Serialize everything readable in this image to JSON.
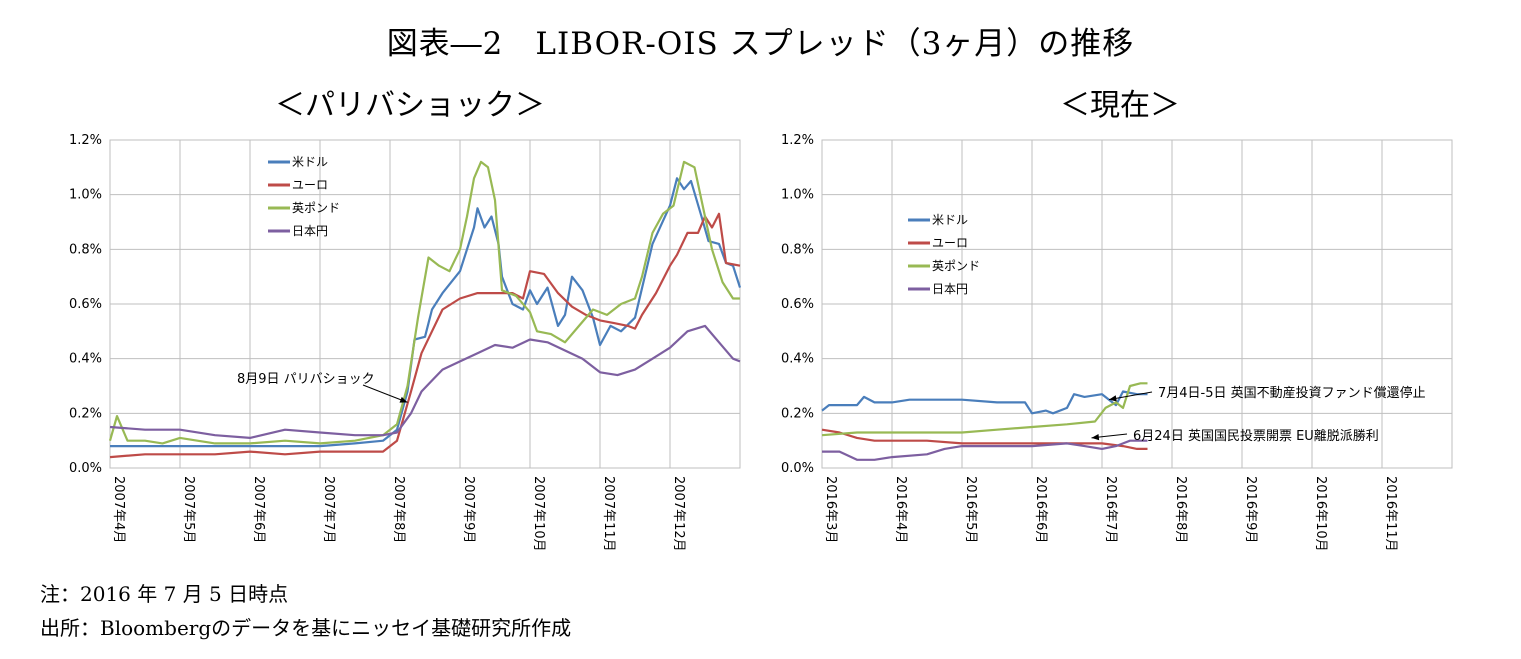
{
  "title": "図表―2　LIBOR-OIS スプレッド（3ヶ月）の推移",
  "note": "注：2016 年 7 月 5 日時点",
  "source": "出所：Bloombergのデータを基にニッセイ基礎研究所作成",
  "colors": {
    "usd": "#4a7ebb",
    "eur": "#be4b48",
    "gbp": "#98b954",
    "jpy": "#7d5fa0"
  },
  "chart_data": [
    {
      "type": "line",
      "title": "＜パリバショック＞",
      "ylim": [
        0,
        1.2
      ],
      "yticks": [
        "0.0%",
        "0.2%",
        "0.4%",
        "0.6%",
        "0.8%",
        "1.0%",
        "1.2%"
      ],
      "grid": true,
      "legend": "top-left",
      "xticks": [
        "2007年4月",
        "2007年5月",
        "2007年6月",
        "2007年7月",
        "2007年8月",
        "2007年9月",
        "2007年10月",
        "2007年11月",
        "2007年12月"
      ],
      "x_range_months": [
        0,
        9
      ],
      "annotations": [
        {
          "text": "8月9日 パリバショック",
          "x": 4.25,
          "y": 0.24
        }
      ],
      "series": [
        {
          "name": "米ドル",
          "key": "usd",
          "points": [
            [
              0,
              0.08
            ],
            [
              0.5,
              0.08
            ],
            [
              1,
              0.08
            ],
            [
              1.5,
              0.08
            ],
            [
              2,
              0.08
            ],
            [
              2.5,
              0.08
            ],
            [
              3,
              0.08
            ],
            [
              3.5,
              0.09
            ],
            [
              3.9,
              0.1
            ],
            [
              4.1,
              0.14
            ],
            [
              4.25,
              0.28
            ],
            [
              4.35,
              0.47
            ],
            [
              4.5,
              0.48
            ],
            [
              4.6,
              0.58
            ],
            [
              4.75,
              0.64
            ],
            [
              5,
              0.72
            ],
            [
              5.1,
              0.8
            ],
            [
              5.2,
              0.88
            ],
            [
              5.25,
              0.95
            ],
            [
              5.35,
              0.88
            ],
            [
              5.45,
              0.92
            ],
            [
              5.55,
              0.82
            ],
            [
              5.6,
              0.7
            ],
            [
              5.75,
              0.6
            ],
            [
              5.9,
              0.58
            ],
            [
              6,
              0.65
            ],
            [
              6.1,
              0.6
            ],
            [
              6.25,
              0.66
            ],
            [
              6.4,
              0.52
            ],
            [
              6.5,
              0.56
            ],
            [
              6.6,
              0.7
            ],
            [
              6.75,
              0.65
            ],
            [
              6.9,
              0.55
            ],
            [
              7,
              0.45
            ],
            [
              7.15,
              0.52
            ],
            [
              7.3,
              0.5
            ],
            [
              7.5,
              0.55
            ],
            [
              7.75,
              0.82
            ],
            [
              8,
              0.96
            ],
            [
              8.1,
              1.06
            ],
            [
              8.2,
              1.02
            ],
            [
              8.3,
              1.05
            ],
            [
              8.45,
              0.92
            ],
            [
              8.55,
              0.83
            ],
            [
              8.7,
              0.82
            ],
            [
              8.8,
              0.75
            ],
            [
              8.9,
              0.74
            ],
            [
              9,
              0.66
            ]
          ]
        },
        {
          "name": "ユーロ",
          "key": "eur",
          "points": [
            [
              0,
              0.04
            ],
            [
              0.5,
              0.05
            ],
            [
              1,
              0.05
            ],
            [
              1.5,
              0.05
            ],
            [
              2,
              0.06
            ],
            [
              2.5,
              0.05
            ],
            [
              3,
              0.06
            ],
            [
              3.5,
              0.06
            ],
            [
              3.9,
              0.06
            ],
            [
              4.1,
              0.1
            ],
            [
              4.3,
              0.28
            ],
            [
              4.45,
              0.42
            ],
            [
              4.6,
              0.5
            ],
            [
              4.75,
              0.58
            ],
            [
              5,
              0.62
            ],
            [
              5.25,
              0.64
            ],
            [
              5.5,
              0.64
            ],
            [
              5.75,
              0.64
            ],
            [
              5.9,
              0.62
            ],
            [
              6,
              0.72
            ],
            [
              6.2,
              0.71
            ],
            [
              6.4,
              0.64
            ],
            [
              6.6,
              0.59
            ],
            [
              6.8,
              0.56
            ],
            [
              7,
              0.54
            ],
            [
              7.2,
              0.53
            ],
            [
              7.4,
              0.52
            ],
            [
              7.5,
              0.51
            ],
            [
              7.6,
              0.56
            ],
            [
              7.8,
              0.64
            ],
            [
              8,
              0.74
            ],
            [
              8.1,
              0.78
            ],
            [
              8.25,
              0.86
            ],
            [
              8.4,
              0.86
            ],
            [
              8.5,
              0.92
            ],
            [
              8.6,
              0.88
            ],
            [
              8.7,
              0.93
            ],
            [
              8.8,
              0.75
            ],
            [
              9,
              0.74
            ]
          ]
        },
        {
          "name": "英ポンド",
          "key": "gbp",
          "points": [
            [
              0,
              0.1
            ],
            [
              0.1,
              0.19
            ],
            [
              0.25,
              0.1
            ],
            [
              0.5,
              0.1
            ],
            [
              0.75,
              0.09
            ],
            [
              1,
              0.11
            ],
            [
              1.25,
              0.1
            ],
            [
              1.5,
              0.09
            ],
            [
              2,
              0.09
            ],
            [
              2.5,
              0.1
            ],
            [
              3,
              0.09
            ],
            [
              3.5,
              0.1
            ],
            [
              3.9,
              0.12
            ],
            [
              4.1,
              0.16
            ],
            [
              4.25,
              0.3
            ],
            [
              4.4,
              0.55
            ],
            [
              4.55,
              0.77
            ],
            [
              4.7,
              0.74
            ],
            [
              4.85,
              0.72
            ],
            [
              5,
              0.8
            ],
            [
              5.1,
              0.92
            ],
            [
              5.2,
              1.06
            ],
            [
              5.3,
              1.12
            ],
            [
              5.4,
              1.1
            ],
            [
              5.5,
              0.98
            ],
            [
              5.6,
              0.65
            ],
            [
              5.8,
              0.63
            ],
            [
              6,
              0.57
            ],
            [
              6.1,
              0.5
            ],
            [
              6.3,
              0.49
            ],
            [
              6.5,
              0.46
            ],
            [
              6.7,
              0.52
            ],
            [
              6.9,
              0.58
            ],
            [
              7.1,
              0.56
            ],
            [
              7.3,
              0.6
            ],
            [
              7.5,
              0.62
            ],
            [
              7.6,
              0.7
            ],
            [
              7.75,
              0.86
            ],
            [
              7.9,
              0.93
            ],
            [
              8.05,
              0.96
            ],
            [
              8.2,
              1.12
            ],
            [
              8.35,
              1.1
            ],
            [
              8.5,
              0.92
            ],
            [
              8.6,
              0.8
            ],
            [
              8.75,
              0.68
            ],
            [
              8.9,
              0.62
            ],
            [
              9,
              0.62
            ]
          ]
        },
        {
          "name": "日本円",
          "key": "jpy",
          "points": [
            [
              0,
              0.15
            ],
            [
              0.5,
              0.14
            ],
            [
              1,
              0.14
            ],
            [
              1.5,
              0.12
            ],
            [
              2,
              0.11
            ],
            [
              2.5,
              0.14
            ],
            [
              3,
              0.13
            ],
            [
              3.5,
              0.12
            ],
            [
              3.9,
              0.12
            ],
            [
              4.1,
              0.13
            ],
            [
              4.3,
              0.2
            ],
            [
              4.45,
              0.28
            ],
            [
              4.6,
              0.32
            ],
            [
              4.75,
              0.36
            ],
            [
              5,
              0.39
            ],
            [
              5.25,
              0.42
            ],
            [
              5.5,
              0.45
            ],
            [
              5.75,
              0.44
            ],
            [
              6,
              0.47
            ],
            [
              6.25,
              0.46
            ],
            [
              6.5,
              0.43
            ],
            [
              6.75,
              0.4
            ],
            [
              7,
              0.35
            ],
            [
              7.25,
              0.34
            ],
            [
              7.5,
              0.36
            ],
            [
              7.75,
              0.4
            ],
            [
              8,
              0.44
            ],
            [
              8.25,
              0.5
            ],
            [
              8.5,
              0.52
            ],
            [
              8.7,
              0.46
            ],
            [
              8.9,
              0.4
            ],
            [
              9,
              0.39
            ]
          ]
        }
      ]
    },
    {
      "type": "line",
      "title": "＜現在＞",
      "ylim": [
        0,
        1.2
      ],
      "yticks": [
        "0.0%",
        "0.2%",
        "0.4%",
        "0.6%",
        "0.8%",
        "1.0%",
        "1.2%"
      ],
      "grid": true,
      "legend": "top-left",
      "xticks": [
        "2016年3月",
        "2016年4月",
        "2016年5月",
        "2016年6月",
        "2016年7月",
        "2016年8月",
        "2016年9月",
        "2016年10月",
        "2016年11月"
      ],
      "x_range_months": [
        0,
        9
      ],
      "annotations": [
        {
          "text": "7月4日-5日 英国不動産投資ファンド償還停止",
          "x": 4.1,
          "y": 0.25
        },
        {
          "text": "6月24日 英国国民投票開票 EU離脱派勝利",
          "x": 3.85,
          "y": 0.11
        }
      ],
      "series": [
        {
          "name": "米ドル",
          "key": "usd",
          "points": [
            [
              0,
              0.21
            ],
            [
              0.1,
              0.23
            ],
            [
              0.3,
              0.23
            ],
            [
              0.5,
              0.23
            ],
            [
              0.6,
              0.26
            ],
            [
              0.75,
              0.24
            ],
            [
              1,
              0.24
            ],
            [
              1.25,
              0.25
            ],
            [
              1.5,
              0.25
            ],
            [
              2,
              0.25
            ],
            [
              2.5,
              0.24
            ],
            [
              2.9,
              0.24
            ],
            [
              3,
              0.2
            ],
            [
              3.2,
              0.21
            ],
            [
              3.3,
              0.2
            ],
            [
              3.5,
              0.22
            ],
            [
              3.6,
              0.27
            ],
            [
              3.75,
              0.26
            ],
            [
              4,
              0.27
            ],
            [
              4.1,
              0.25
            ],
            [
              4.2,
              0.23
            ],
            [
              4.3,
              0.28
            ],
            [
              4.5,
              0.27
            ],
            [
              4.65,
              0.27
            ]
          ]
        },
        {
          "name": "ユーロ",
          "key": "eur",
          "points": [
            [
              0,
              0.14
            ],
            [
              0.25,
              0.13
            ],
            [
              0.5,
              0.11
            ],
            [
              0.75,
              0.1
            ],
            [
              1,
              0.1
            ],
            [
              1.5,
              0.1
            ],
            [
              2,
              0.09
            ],
            [
              2.5,
              0.09
            ],
            [
              3,
              0.09
            ],
            [
              3.5,
              0.09
            ],
            [
              4,
              0.09
            ],
            [
              4.3,
              0.08
            ],
            [
              4.5,
              0.07
            ],
            [
              4.65,
              0.07
            ]
          ]
        },
        {
          "name": "英ポンド",
          "key": "gbp",
          "points": [
            [
              0,
              0.12
            ],
            [
              0.5,
              0.13
            ],
            [
              1,
              0.13
            ],
            [
              1.5,
              0.13
            ],
            [
              2,
              0.13
            ],
            [
              2.5,
              0.14
            ],
            [
              3,
              0.15
            ],
            [
              3.5,
              0.16
            ],
            [
              3.9,
              0.17
            ],
            [
              4.05,
              0.22
            ],
            [
              4.2,
              0.24
            ],
            [
              4.3,
              0.22
            ],
            [
              4.4,
              0.3
            ],
            [
              4.55,
              0.31
            ],
            [
              4.65,
              0.31
            ]
          ]
        },
        {
          "name": "日本円",
          "key": "jpy",
          "points": [
            [
              0,
              0.06
            ],
            [
              0.25,
              0.06
            ],
            [
              0.5,
              0.03
            ],
            [
              0.75,
              0.03
            ],
            [
              1,
              0.04
            ],
            [
              1.5,
              0.05
            ],
            [
              1.75,
              0.07
            ],
            [
              2,
              0.08
            ],
            [
              2.5,
              0.08
            ],
            [
              3,
              0.08
            ],
            [
              3.5,
              0.09
            ],
            [
              3.75,
              0.08
            ],
            [
              4,
              0.07
            ],
            [
              4.2,
              0.08
            ],
            [
              4.3,
              0.09
            ],
            [
              4.4,
              0.1
            ],
            [
              4.65,
              0.1
            ]
          ]
        }
      ]
    }
  ]
}
